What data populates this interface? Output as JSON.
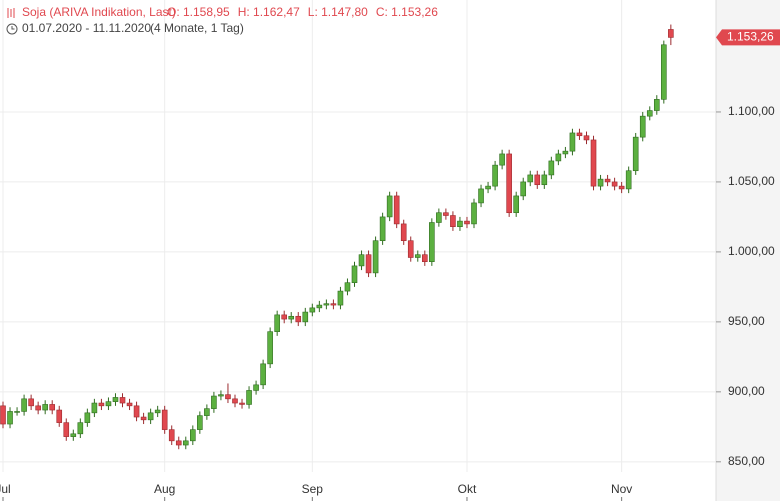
{
  "chart_data": {
    "type": "candlestick",
    "legend": {
      "name": "Soja (ARIVA Indikation, Last)",
      "values": [
        "O: 1.158,95",
        "H: 1.162,47",
        "L: 1.147,80",
        "C: 1.153,26"
      ]
    },
    "range": "01.07.2020 - 11.11.2020",
    "duration": "(4 Monate, 1 Tag)",
    "last_label": "1.153,26",
    "up_color": "#5cb040",
    "down_color": "#e0484f",
    "grid": true,
    "ylim": [
      822,
      1180
    ],
    "yticks": [
      {
        "value": 850,
        "label": "850,00"
      },
      {
        "value": 900,
        "label": "900,00"
      },
      {
        "value": 950,
        "label": "950,00"
      },
      {
        "value": 1000,
        "label": "1.000,00"
      },
      {
        "value": 1050,
        "label": "1.050,00"
      },
      {
        "value": 1100,
        "label": "1.100,00"
      }
    ],
    "categories": [
      "Jul",
      null,
      null,
      null,
      null,
      null,
      null,
      null,
      null,
      null,
      null,
      null,
      null,
      null,
      null,
      null,
      null,
      null,
      null,
      null,
      null,
      null,
      null,
      "Aug",
      null,
      null,
      null,
      null,
      null,
      null,
      null,
      null,
      null,
      null,
      null,
      null,
      null,
      null,
      null,
      null,
      null,
      null,
      null,
      null,
      "Sep",
      null,
      null,
      null,
      null,
      null,
      null,
      null,
      null,
      null,
      null,
      null,
      null,
      null,
      null,
      null,
      null,
      null,
      null,
      null,
      null,
      null,
      "Okt",
      null,
      null,
      null,
      null,
      null,
      null,
      null,
      null,
      null,
      null,
      null,
      null,
      null,
      null,
      null,
      null,
      null,
      null,
      null,
      null,
      null,
      "Nov",
      null,
      null,
      null,
      null,
      null,
      null,
      null
    ],
    "ohlc": [
      [
        890,
        893,
        874,
        877
      ],
      [
        877,
        889,
        874,
        886
      ],
      [
        886,
        889,
        883,
        886
      ],
      [
        886,
        898,
        883,
        895
      ],
      [
        895,
        898,
        887,
        890
      ],
      [
        890,
        893,
        884,
        887
      ],
      [
        887,
        894,
        884,
        891
      ],
      [
        891,
        894,
        884,
        887
      ],
      [
        887,
        890,
        875,
        878
      ],
      [
        878,
        881,
        865,
        868
      ],
      [
        868,
        873,
        865,
        870
      ],
      [
        870,
        881,
        867,
        878
      ],
      [
        878,
        888,
        875,
        885
      ],
      [
        885,
        895,
        882,
        892
      ],
      [
        892,
        895,
        887,
        890
      ],
      [
        890,
        896,
        887,
        893
      ],
      [
        893,
        899,
        890,
        896
      ],
      [
        896,
        899,
        889,
        892
      ],
      [
        892,
        895,
        887,
        890
      ],
      [
        890,
        893,
        879,
        882
      ],
      [
        882,
        885,
        877,
        880
      ],
      [
        880,
        888,
        877,
        885
      ],
      [
        885,
        890,
        882,
        887
      ],
      [
        887,
        890,
        870,
        873
      ],
      [
        873,
        876,
        862,
        865
      ],
      [
        865,
        868,
        859,
        862
      ],
      [
        862,
        868,
        859,
        865
      ],
      [
        865,
        876,
        862,
        873
      ],
      [
        873,
        886,
        870,
        883
      ],
      [
        883,
        891,
        880,
        888
      ],
      [
        888,
        900,
        885,
        897
      ],
      [
        897,
        901,
        894,
        898
      ],
      [
        898,
        906,
        892,
        895
      ],
      [
        895,
        898,
        889,
        892
      ],
      [
        892,
        895,
        888,
        891
      ],
      [
        891,
        904,
        888,
        901
      ],
      [
        901,
        908,
        898,
        905
      ],
      [
        905,
        923,
        902,
        920
      ],
      [
        920,
        946,
        917,
        943
      ],
      [
        943,
        958,
        940,
        955
      ],
      [
        955,
        958,
        949,
        952
      ],
      [
        952,
        957,
        949,
        954
      ],
      [
        954,
        957,
        947,
        950
      ],
      [
        950,
        960,
        947,
        957
      ],
      [
        957,
        963,
        954,
        960
      ],
      [
        960,
        965,
        957,
        962
      ],
      [
        962,
        966,
        959,
        963
      ],
      [
        963,
        966,
        959,
        962
      ],
      [
        962,
        975,
        959,
        972
      ],
      [
        972,
        981,
        969,
        978
      ],
      [
        978,
        993,
        975,
        990
      ],
      [
        990,
        1001,
        987,
        998
      ],
      [
        998,
        1001,
        982,
        985
      ],
      [
        985,
        1011,
        982,
        1008
      ],
      [
        1008,
        1028,
        1005,
        1025
      ],
      [
        1025,
        1043,
        1022,
        1040
      ],
      [
        1040,
        1043,
        1017,
        1020
      ],
      [
        1020,
        1023,
        1005,
        1008
      ],
      [
        1008,
        1011,
        993,
        996
      ],
      [
        996,
        1001,
        993,
        998
      ],
      [
        998,
        1001,
        990,
        993
      ],
      [
        993,
        1024,
        990,
        1021
      ],
      [
        1021,
        1031,
        1018,
        1028
      ],
      [
        1028,
        1031,
        1023,
        1026
      ],
      [
        1026,
        1029,
        1015,
        1018
      ],
      [
        1018,
        1025,
        1015,
        1022
      ],
      [
        1022,
        1025,
        1017,
        1020
      ],
      [
        1020,
        1038,
        1017,
        1035
      ],
      [
        1035,
        1048,
        1032,
        1045
      ],
      [
        1045,
        1050,
        1042,
        1047
      ],
      [
        1047,
        1065,
        1044,
        1062
      ],
      [
        1062,
        1073,
        1059,
        1070
      ],
      [
        1070,
        1073,
        1025,
        1028
      ],
      [
        1028,
        1043,
        1025,
        1040
      ],
      [
        1040,
        1053,
        1037,
        1050
      ],
      [
        1050,
        1058,
        1047,
        1055
      ],
      [
        1055,
        1058,
        1045,
        1048
      ],
      [
        1048,
        1058,
        1045,
        1055
      ],
      [
        1055,
        1068,
        1052,
        1065
      ],
      [
        1065,
        1073,
        1062,
        1070
      ],
      [
        1070,
        1075,
        1067,
        1072
      ],
      [
        1072,
        1088,
        1069,
        1085
      ],
      [
        1085,
        1088,
        1080,
        1083
      ],
      [
        1083,
        1086,
        1077,
        1080
      ],
      [
        1080,
        1083,
        1044,
        1047
      ],
      [
        1047,
        1055,
        1044,
        1052
      ],
      [
        1052,
        1055,
        1047,
        1050
      ],
      [
        1050,
        1053,
        1044,
        1047
      ],
      [
        1047,
        1050,
        1042,
        1045
      ],
      [
        1045,
        1061,
        1042,
        1058
      ],
      [
        1058,
        1085,
        1055,
        1082
      ],
      [
        1082,
        1100,
        1079,
        1097
      ],
      [
        1097,
        1104,
        1094,
        1101
      ],
      [
        1101,
        1112,
        1098,
        1109
      ],
      [
        1109,
        1151,
        1106,
        1148
      ],
      [
        1158.95,
        1162.47,
        1147.8,
        1153.26
      ]
    ]
  }
}
